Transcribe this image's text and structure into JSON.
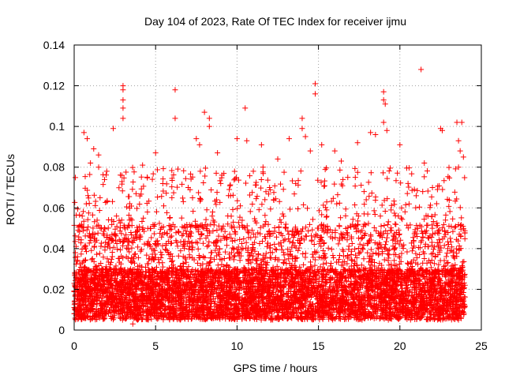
{
  "chart_data": {
    "type": "scatter",
    "title": "Day 104 of 2023, Rate Of TEC Index for receiver ijmu",
    "xlabel": "GPS time / hours",
    "ylabel": "ROTI / TECUs",
    "xlim": [
      0,
      25
    ],
    "ylim": [
      0,
      0.14
    ],
    "xticks": [
      0,
      5,
      10,
      15,
      20,
      25
    ],
    "xtick_labels": [
      "0",
      "5",
      "10",
      "15",
      "20",
      "25"
    ],
    "yticks": [
      0,
      0.02,
      0.04,
      0.06,
      0.08,
      0.1,
      0.12,
      0.14
    ],
    "ytick_labels": [
      "0",
      "0.02",
      "0.04",
      "0.06",
      "0.08",
      "0.1",
      "0.12",
      "0.14"
    ],
    "grid": true,
    "marker": "+",
    "series_color": "#ff0000",
    "data_time_range_hours": [
      0,
      24
    ],
    "dense_band_range": [
      0.005,
      0.03
    ],
    "points": [
      [
        0.6,
        0.097
      ],
      [
        0.8,
        0.094
      ],
      [
        1.2,
        0.089
      ],
      [
        1.5,
        0.086
      ],
      [
        2.4,
        0.099
      ],
      [
        3.0,
        0.12
      ],
      [
        3.0,
        0.118
      ],
      [
        3.0,
        0.113
      ],
      [
        3.0,
        0.109
      ],
      [
        3.0,
        0.104
      ],
      [
        4.2,
        0.081
      ],
      [
        5.0,
        0.087
      ],
      [
        6.2,
        0.118
      ],
      [
        6.2,
        0.104
      ],
      [
        7.5,
        0.094
      ],
      [
        7.7,
        0.091
      ],
      [
        8.0,
        0.107
      ],
      [
        8.3,
        0.104
      ],
      [
        8.3,
        0.1
      ],
      [
        8.8,
        0.087
      ],
      [
        10.0,
        0.094
      ],
      [
        10.5,
        0.109
      ],
      [
        10.6,
        0.093
      ],
      [
        11.5,
        0.091
      ],
      [
        12.5,
        0.084
      ],
      [
        13.2,
        0.094
      ],
      [
        14.0,
        0.104
      ],
      [
        14.0,
        0.099
      ],
      [
        14.2,
        0.095
      ],
      [
        14.5,
        0.088
      ],
      [
        14.8,
        0.121
      ],
      [
        14.8,
        0.116
      ],
      [
        15.2,
        0.091
      ],
      [
        16.0,
        0.088
      ],
      [
        16.4,
        0.083
      ],
      [
        17.4,
        0.092
      ],
      [
        18.2,
        0.097
      ],
      [
        18.5,
        0.096
      ],
      [
        19.0,
        0.117
      ],
      [
        19.0,
        0.113
      ],
      [
        19.1,
        0.111
      ],
      [
        19.0,
        0.102
      ],
      [
        19.2,
        0.098
      ],
      [
        20.0,
        0.091
      ],
      [
        21.3,
        0.128
      ],
      [
        21.5,
        0.082
      ],
      [
        22.5,
        0.099
      ],
      [
        22.6,
        0.098
      ],
      [
        23.5,
        0.102
      ],
      [
        23.8,
        0.102
      ],
      [
        23.6,
        0.093
      ],
      [
        23.7,
        0.088
      ],
      [
        23.9,
        0.085
      ],
      [
        23.6,
        0.08
      ],
      [
        1.0,
        0.082
      ],
      [
        2.0,
        0.078
      ],
      [
        3.8,
        0.067
      ],
      [
        4.8,
        0.074
      ],
      [
        6.0,
        0.065
      ],
      [
        7.0,
        0.07
      ],
      [
        9.0,
        0.072
      ],
      [
        9.6,
        0.066
      ],
      [
        11.0,
        0.078
      ],
      [
        12.0,
        0.07
      ],
      [
        13.6,
        0.072
      ],
      [
        16.8,
        0.075
      ],
      [
        17.8,
        0.068
      ],
      [
        20.5,
        0.072
      ],
      [
        21.0,
        0.066
      ],
      [
        22.0,
        0.07
      ],
      [
        0.2,
        0.036
      ],
      [
        0.5,
        0.033
      ],
      [
        1.6,
        0.05
      ],
      [
        2.6,
        0.056
      ],
      [
        3.4,
        0.054
      ],
      [
        4.5,
        0.058
      ],
      [
        5.5,
        0.061
      ],
      [
        6.6,
        0.055
      ],
      [
        8.5,
        0.058
      ],
      [
        10.2,
        0.061
      ],
      [
        12.8,
        0.057
      ],
      [
        15.5,
        0.059
      ],
      [
        18.8,
        0.056
      ],
      [
        22.8,
        0.054
      ],
      [
        3.6,
        0.003
      ],
      [
        3.9,
        0.005
      ]
    ]
  }
}
